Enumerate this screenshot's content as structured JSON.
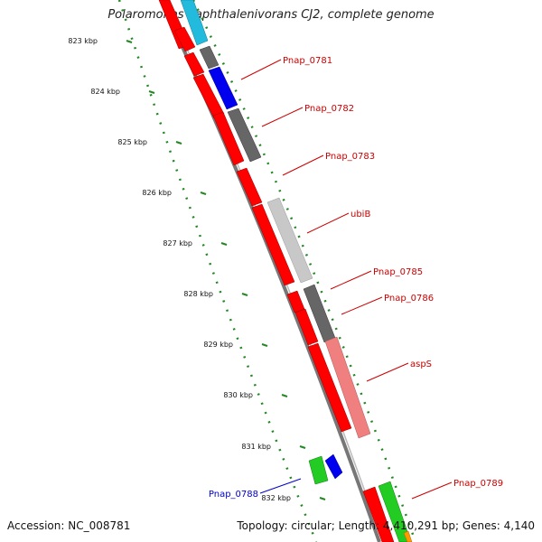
{
  "title": "Polaromonas naphthalenivorans CJ2, complete genome",
  "footer": {
    "accession": "Accession: NC_008781",
    "summary": "Topology: circular; Length: 4,410,291 bp; Genes: 4,140"
  },
  "ticks": [
    {
      "label": "823 kbp",
      "kbp": 823
    },
    {
      "label": "824 kbp",
      "kbp": 824
    },
    {
      "label": "825 kbp",
      "kbp": 825
    },
    {
      "label": "826 kbp",
      "kbp": 826
    },
    {
      "label": "827 kbp",
      "kbp": 827
    },
    {
      "label": "828 kbp",
      "kbp": 828
    },
    {
      "label": "829 kbp",
      "kbp": 829
    },
    {
      "label": "830 kbp",
      "kbp": 830
    },
    {
      "label": "831 kbp",
      "kbp": 831
    },
    {
      "label": "832 kbp",
      "kbp": 832
    }
  ],
  "gene_labels": [
    {
      "label": "Pnap_0781",
      "color": "#cc0000"
    },
    {
      "label": "Pnap_0782",
      "color": "#cc0000"
    },
    {
      "label": "Pnap_0783",
      "color": "#cc0000"
    },
    {
      "label": "ubiB",
      "color": "#cc0000"
    },
    {
      "label": "Pnap_0785",
      "color": "#cc0000"
    },
    {
      "label": "Pnap_0786",
      "color": "#cc0000"
    },
    {
      "label": "aspS",
      "color": "#cc0000"
    },
    {
      "label": "Pnap_0788",
      "color": "#0000cc"
    },
    {
      "label": "Pnap_0789",
      "color": "#cc0000"
    }
  ],
  "colors": {
    "cds": "#ff0000",
    "gray": "#666666",
    "blue": "#0000ee",
    "green": "#22cc22",
    "cyan": "#22bbdd",
    "light_red": "#f08080",
    "light_gray": "#c8c8c8",
    "gc_ticks": "#228822"
  }
}
